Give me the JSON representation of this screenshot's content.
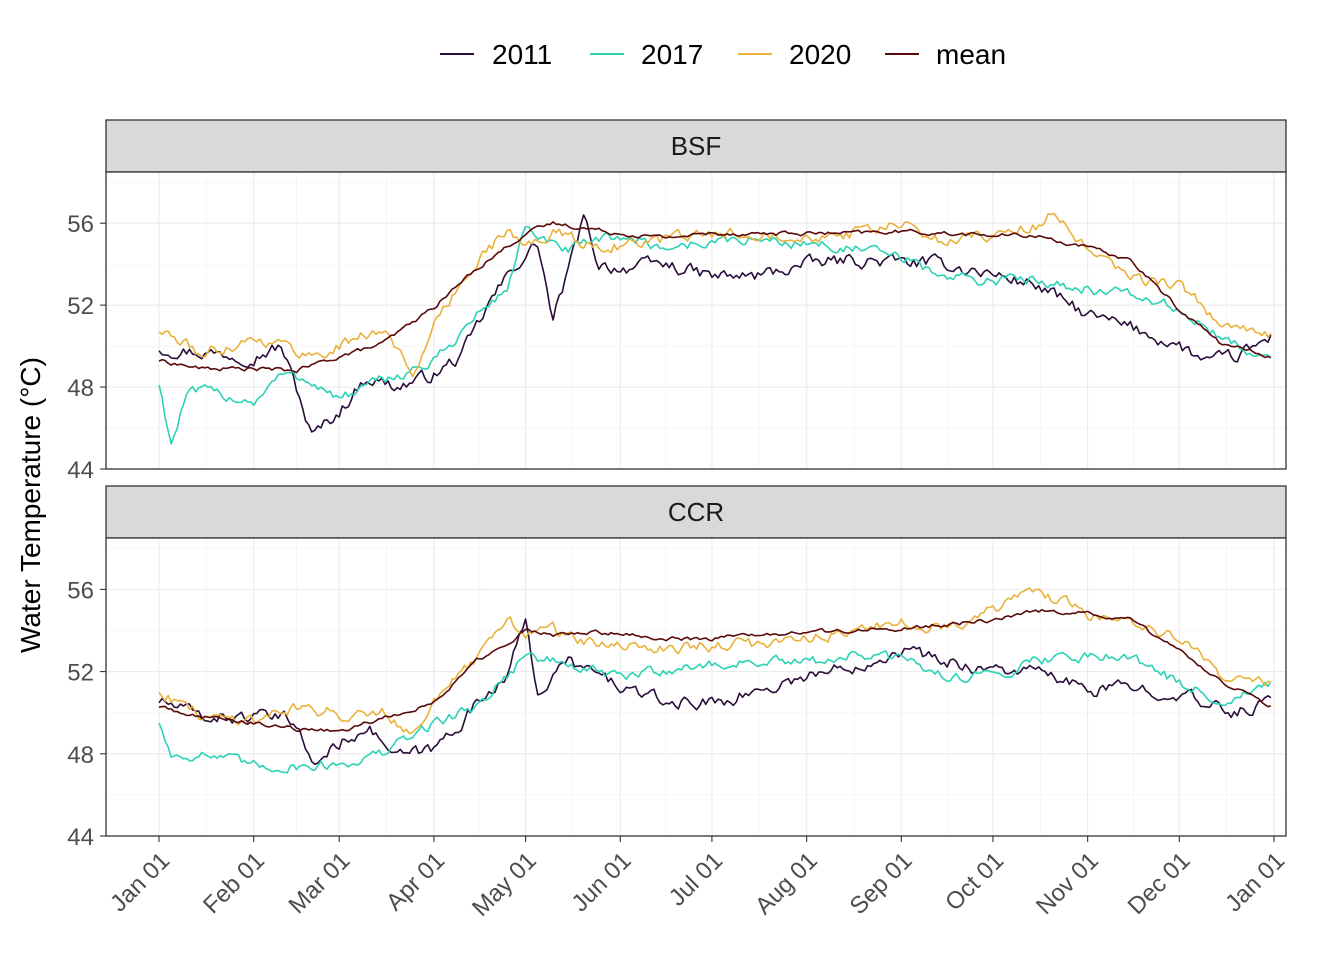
{
  "chart_data": {
    "type": "line",
    "title": "",
    "ylabel": "Water Temperature (°C)",
    "xlabel": "",
    "x_ticks": [
      "Jan 01",
      "Feb 01",
      "Mar 01",
      "Apr 01",
      "May 01",
      "Jun 01",
      "Jul 01",
      "Aug 01",
      "Sep 01",
      "Oct 01",
      "Nov 01",
      "Dec 01",
      "Jan 01"
    ],
    "x_tick_days": [
      0,
      31,
      59,
      90,
      120,
      151,
      181,
      212,
      243,
      273,
      304,
      334,
      365
    ],
    "ylim": [
      44,
      58.5
    ],
    "y_ticks": [
      44,
      48,
      52,
      56
    ],
    "grid": true,
    "legend_position": "top",
    "legend": [
      "2011",
      "2017",
      "2020",
      "mean"
    ],
    "colors": {
      "2011": "#2b0d3a",
      "2017": "#2ad3b5",
      "2020": "#e9b23a",
      "mean": "#5a0a0a"
    },
    "panels": [
      {
        "name": "BSF",
        "series": [
          {
            "name": "2011",
            "x": [
              "Jan 01",
              "Jan 15",
              "Feb 01",
              "Feb 10",
              "Feb 16",
              "Feb 20",
              "Mar 01",
              "Mar 10",
              "Mar 20",
              "Apr 01",
              "Apr 10",
              "Apr 20",
              "Apr 28",
              "May 05",
              "May 10",
              "May 20",
              "May 25",
              "Jun 01",
              "Jun 15",
              "Jul 01",
              "Jul 15",
              "Aug 01",
              "Aug 15",
              "Sep 01",
              "Sep 15",
              "Oct 01",
              "Oct 15",
              "Nov 01",
              "Nov 15",
              "Dec 01",
              "Dec 10",
              "Dec 20",
              "Dec 31"
            ],
            "values": [
              49.9,
              49.7,
              49.5,
              50.0,
              47.5,
              45.6,
              46.8,
              48.5,
              48.0,
              48.6,
              49.5,
              52.3,
              54.0,
              55.0,
              51.2,
              56.2,
              54.0,
              53.8,
              54.0,
              53.4,
              53.4,
              54.0,
              54.2,
              54.1,
              54.0,
              53.5,
              53.0,
              51.5,
              50.9,
              50.0,
              49.2,
              49.5,
              50.4
            ]
          },
          {
            "name": "2017",
            "x": [
              "Jan 01",
              "Jan 05",
              "Jan 10",
              "Jan 15",
              "Feb 01",
              "Feb 10",
              "Feb 20",
              "Mar 01",
              "Mar 15",
              "Apr 01",
              "Apr 15",
              "Apr 25",
              "May 01",
              "May 05",
              "May 15",
              "Jun 01",
              "Jun 15",
              "Jul 01",
              "Jul 15",
              "Aug 01",
              "Aug 15",
              "Sep 01",
              "Sep 15",
              "Oct 01",
              "Oct 15",
              "Nov 01",
              "Nov 15",
              "Dec 01",
              "Dec 15",
              "Dec 31"
            ],
            "values": [
              48.2,
              45.2,
              47.6,
              47.8,
              47.3,
              48.6,
              48.3,
              47.4,
              48.3,
              49.2,
              51.5,
              52.8,
              56.0,
              55.1,
              54.7,
              55.4,
              54.8,
              55.1,
              55.2,
              55.0,
              54.8,
              54.3,
              53.4,
              53.2,
              53.3,
              52.8,
              52.5,
              51.8,
              50.3,
              49.4
            ]
          },
          {
            "name": "2020",
            "x": [
              "Jan 01",
              "Jan 15",
              "Feb 01",
              "Feb 10",
              "Feb 20",
              "Mar 01",
              "Mar 15",
              "Mar 25",
              "Apr 01",
              "Apr 15",
              "Apr 25",
              "May 01",
              "May 10",
              "May 20",
              "Jun 01",
              "Jun 15",
              "Jul 01",
              "Jul 15",
              "Aug 01",
              "Aug 15",
              "Sep 01",
              "Sep 15",
              "Oct 01",
              "Oct 15",
              "Oct 20",
              "Nov 01",
              "Nov 15",
              "Dec 01",
              "Dec 15",
              "Dec 31"
            ],
            "values": [
              50.8,
              49.6,
              50.4,
              50.1,
              49.5,
              50.0,
              50.9,
              48.7,
              50.9,
              54.3,
              55.6,
              54.8,
              55.6,
              55.0,
              54.9,
              55.2,
              55.4,
              55.6,
              55.4,
              55.5,
              55.9,
              55.1,
              55.5,
              55.8,
              56.6,
              54.6,
              53.3,
              53.0,
              51.0,
              50.5
            ]
          },
          {
            "name": "mean",
            "x": [
              "Jan 01",
              "Jan 15",
              "Feb 01",
              "Feb 15",
              "Mar 01",
              "Mar 15",
              "Apr 01",
              "Apr 15",
              "May 01",
              "May 10",
              "Jun 01",
              "Jun 15",
              "Jul 01",
              "Jul 15",
              "Aug 01",
              "Aug 15",
              "Sep 01",
              "Sep 15",
              "Oct 01",
              "Oct 15",
              "Nov 01",
              "Nov 15",
              "Dec 01",
              "Dec 15",
              "Dec 31"
            ],
            "values": [
              49.3,
              48.9,
              48.9,
              48.8,
              49.5,
              50.1,
              51.9,
              53.8,
              55.5,
              56.0,
              55.5,
              55.3,
              55.5,
              55.5,
              55.5,
              55.5,
              55.6,
              55.5,
              55.4,
              55.4,
              54.8,
              54.2,
              51.8,
              50.1,
              49.5
            ]
          }
        ]
      },
      {
        "name": "CCR",
        "series": [
          {
            "name": "2011",
            "x": [
              "Jan 01",
              "Jan 15",
              "Feb 01",
              "Feb 15",
              "Feb 20",
              "Mar 01",
              "Mar 10",
              "Mar 20",
              "Apr 01",
              "Apr 15",
              "Apr 25",
              "May 01",
              "May 05",
              "May 15",
              "Jun 01",
              "Jun 15",
              "Jul 01",
              "Jul 15",
              "Aug 01",
              "Aug 15",
              "Sep 01",
              "Sep 15",
              "Oct 01",
              "Oct 15",
              "Nov 01",
              "Nov 15",
              "Dec 01",
              "Dec 10",
              "Dec 20",
              "Dec 31"
            ],
            "values": [
              50.6,
              49.8,
              49.8,
              49.6,
              47.4,
              48.5,
              49.4,
              47.8,
              48.2,
              50.4,
              52.0,
              54.3,
              51.0,
              52.5,
              51.3,
              50.5,
              50.5,
              51.0,
              51.8,
              52.2,
              53.1,
              52.5,
              52.1,
              52.0,
              51.1,
              51.2,
              51.0,
              50.3,
              50.0,
              50.6
            ]
          },
          {
            "name": "2017",
            "x": [
              "Jan 01",
              "Jan 05",
              "Jan 15",
              "Feb 01",
              "Feb 15",
              "Mar 01",
              "Mar 15",
              "Apr 01",
              "Apr 15",
              "May 01",
              "May 10",
              "Jun 01",
              "Jun 15",
              "Jul 01",
              "Jul 15",
              "Aug 01",
              "Aug 15",
              "Sep 01",
              "Sep 15",
              "Oct 01",
              "Oct 15",
              "Nov 01",
              "Nov 15",
              "Dec 01",
              "Dec 15",
              "Dec 31"
            ],
            "values": [
              49.6,
              47.9,
              48.0,
              47.4,
              47.4,
              47.5,
              48.0,
              49.5,
              50.3,
              52.8,
              52.5,
              51.7,
              52.1,
              52.3,
              52.5,
              52.4,
              52.8,
              52.6,
              51.8,
              51.8,
              52.6,
              52.8,
              52.8,
              51.4,
              50.6,
              51.3
            ]
          },
          {
            "name": "2020",
            "x": [
              "Jan 01",
              "Jan 15",
              "Feb 01",
              "Feb 15",
              "Mar 01",
              "Mar 15",
              "Mar 25",
              "Apr 01",
              "Apr 15",
              "Apr 25",
              "May 01",
              "May 10",
              "May 20",
              "Jun 01",
              "Jun 15",
              "Jul 01",
              "Jul 15",
              "Aug 01",
              "Aug 15",
              "Sep 01",
              "Sep 15",
              "Oct 01",
              "Oct 10",
              "Oct 15",
              "Nov 01",
              "Nov 15",
              "Dec 01",
              "Dec 15",
              "Dec 31"
            ],
            "values": [
              51.1,
              49.8,
              49.7,
              50.3,
              49.9,
              50.2,
              49.0,
              50.6,
              52.5,
              54.6,
              53.9,
              54.0,
              53.5,
              53.1,
              53.2,
              53.3,
              53.3,
              53.7,
              54.0,
              54.3,
              54.2,
              55.0,
              55.5,
              56.0,
              54.8,
              54.5,
              53.5,
              51.9,
              51.5
            ]
          },
          {
            "name": "mean",
            "x": [
              "Jan 01",
              "Jan 15",
              "Feb 01",
              "Feb 15",
              "Mar 01",
              "Mar 15",
              "Apr 01",
              "Apr 15",
              "May 01",
              "May 10",
              "Jun 01",
              "Jun 15",
              "Jul 01",
              "Jul 15",
              "Aug 01",
              "Aug 15",
              "Sep 01",
              "Sep 15",
              "Oct 01",
              "Oct 15",
              "Nov 01",
              "Nov 15",
              "Dec 01",
              "Dec 15",
              "Dec 31"
            ],
            "values": [
              50.3,
              49.8,
              49.5,
              49.2,
              49.1,
              49.7,
              50.5,
              52.5,
              54.0,
              53.8,
              53.9,
              53.6,
              53.6,
              53.8,
              53.9,
              54.0,
              54.1,
              54.3,
              54.5,
              55.0,
              54.8,
              54.5,
              53.0,
              51.5,
              50.3
            ]
          }
        ]
      }
    ]
  }
}
